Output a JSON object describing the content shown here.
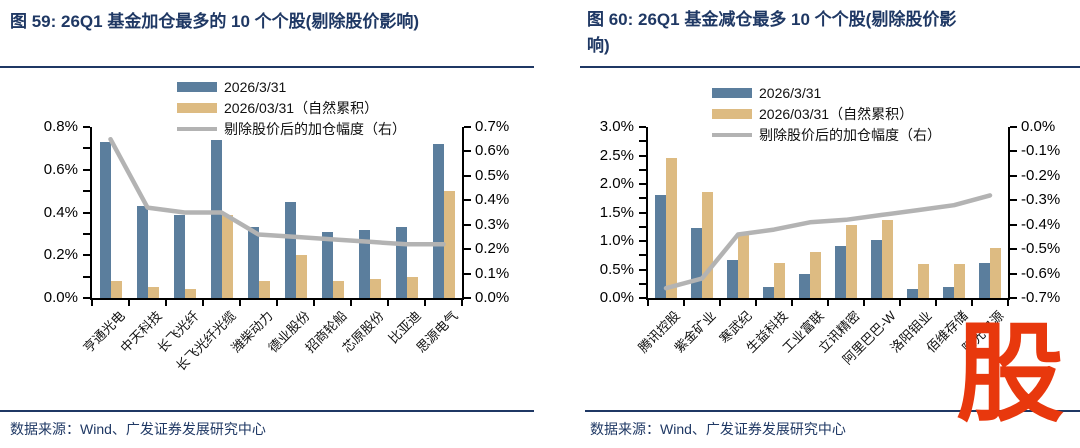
{
  "colors": {
    "bar_blue": "#5B7E9D",
    "bar_tan": "#DDBB82",
    "line_gray": "#B3B3B3",
    "title_navy": "#1F3864",
    "axis_black": "#000000",
    "watermark_red": "#E8380D"
  },
  "watermark": {
    "text": "股",
    "color": "#E8380D"
  },
  "chart_data": [
    {
      "type": "bar",
      "title": "图 59: 26Q1 基金加仓最多的 10 个个股(剔除股价影响)",
      "categories": [
        "亨通光电",
        "中天科技",
        "长飞光纤",
        "长飞光纤光缆",
        "潍柴动力",
        "德业股份",
        "招商轮船",
        "芯原股份",
        "比亚迪",
        "思源电气"
      ],
      "series": [
        {
          "name": "2026/3/31",
          "kind": "bar",
          "axis": "left",
          "color_key": "bar_blue",
          "values": [
            0.73,
            0.43,
            0.39,
            0.74,
            0.33,
            0.45,
            0.31,
            0.32,
            0.33,
            0.72
          ]
        },
        {
          "name": "2026/03/31（自然累积）",
          "kind": "bar",
          "axis": "left",
          "color_key": "bar_tan",
          "values": [
            0.08,
            0.05,
            0.04,
            0.39,
            0.08,
            0.2,
            0.08,
            0.09,
            0.1,
            0.5
          ]
        },
        {
          "name": "剔除股价后的加仓幅度（右）",
          "kind": "line",
          "axis": "right",
          "color_key": "line_gray",
          "values": [
            0.65,
            0.37,
            0.35,
            0.35,
            0.26,
            0.25,
            0.24,
            0.23,
            0.22,
            0.22
          ]
        }
      ],
      "left_axis": {
        "top": 0.8,
        "bottom": 0.0,
        "tick_labels": [
          "0.8%",
          "0.6%",
          "0.4%",
          "0.2%",
          "0.0%"
        ]
      },
      "right_axis": {
        "top": 0.7,
        "bottom": 0.0,
        "tick_labels": [
          "0.7%",
          "0.6%",
          "0.5%",
          "0.4%",
          "0.3%",
          "0.2%",
          "0.1%",
          "0.0%"
        ]
      },
      "legend_position": "top",
      "grid": false,
      "source": "数据来源：Wind、广发证券发展研究中心"
    },
    {
      "type": "bar",
      "title": "图 60: 26Q1 基金减仓最多 10 个个股(剔除股价影响)",
      "categories": [
        "腾讯控股",
        "紫金矿业",
        "寒武纪",
        "生益科技",
        "工业富联",
        "立讯精密",
        "阿里巴巴-W",
        "洛阳钼业",
        "佰维存储",
        "阳光电源"
      ],
      "series": [
        {
          "name": "2026/3/31",
          "kind": "bar",
          "axis": "left",
          "color_key": "bar_blue",
          "values": [
            1.8,
            1.23,
            0.67,
            0.2,
            0.42,
            0.92,
            1.02,
            0.15,
            0.2,
            0.62
          ]
        },
        {
          "name": "2026/03/31（自然累积）",
          "kind": "bar",
          "axis": "left",
          "color_key": "bar_tan",
          "values": [
            2.45,
            1.86,
            1.12,
            0.61,
            0.8,
            1.28,
            1.37,
            0.6,
            0.6,
            0.88
          ]
        },
        {
          "name": "剔除股价后的加仓幅度（右）",
          "kind": "line",
          "axis": "right",
          "color_key": "line_gray",
          "values": [
            -0.66,
            -0.62,
            -0.44,
            -0.42,
            -0.39,
            -0.38,
            -0.36,
            -0.34,
            -0.32,
            -0.28
          ]
        }
      ],
      "left_axis": {
        "top": 3.0,
        "bottom": 0.0,
        "tick_labels": [
          "3.0%",
          "2.5%",
          "2.0%",
          "1.5%",
          "1.0%",
          "0.5%",
          "0.0%"
        ]
      },
      "right_axis": {
        "top": 0.0,
        "bottom": -0.7,
        "tick_labels": [
          "0.0%",
          "-0.1%",
          "-0.2%",
          "-0.3%",
          "-0.4%",
          "-0.5%",
          "-0.6%",
          "-0.7%"
        ]
      },
      "legend_position": "top",
      "grid": false,
      "source": "数据来源：Wind、广发证券发展研究中心"
    }
  ]
}
